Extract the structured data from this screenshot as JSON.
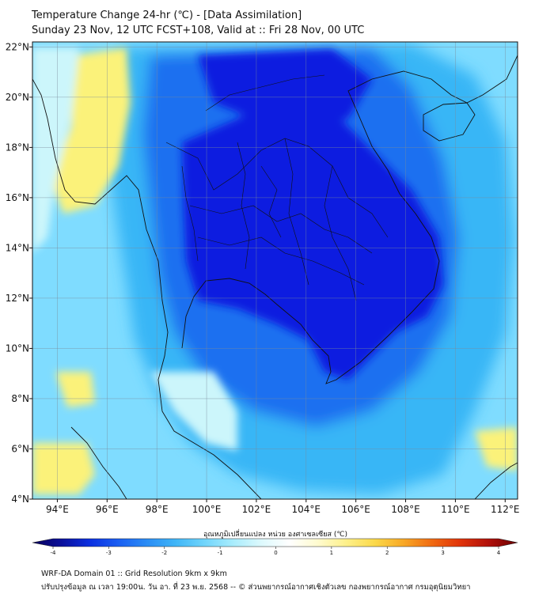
{
  "title_line1": "Temperature Change 24-hr (℃) - [Data Assimilation]",
  "title_line2": "Sunday 23 Nov, 12 UTC FCST+108, Valid at :: Fri 28 Nov, 00 UTC",
  "map": {
    "lon_range": [
      93,
      112.5
    ],
    "lat_range": [
      4,
      22.2
    ],
    "lon_ticks": [
      "94°E",
      "96°E",
      "98°E",
      "100°E",
      "102°E",
      "104°E",
      "106°E",
      "108°E",
      "110°E",
      "112°E"
    ],
    "lon_tick_values": [
      94,
      96,
      98,
      100,
      102,
      104,
      106,
      108,
      110,
      112
    ],
    "lat_ticks": [
      "4°N",
      "6°N",
      "8°N",
      "10°N",
      "12°N",
      "14°N",
      "16°N",
      "18°N",
      "20°N",
      "22°N"
    ],
    "lat_tick_values": [
      4,
      6,
      8,
      10,
      12,
      14,
      16,
      18,
      20,
      22
    ],
    "gridlines": true,
    "field_colors": {
      "background": "#7fdcff",
      "light_blue": "#39b6f6",
      "medium_blue": "#1a6ff0",
      "deep_blue": "#0a1fe0",
      "pale": "#ccf6fb",
      "yellow": "#fbf27a"
    }
  },
  "colorbar": {
    "label": "อุณหภูมิเปลี่ยนแปลง หน่วย องศาเซลเซียส (℃)",
    "ticks": [
      "-4",
      "-3",
      "-2",
      "-1",
      "0",
      "1",
      "2",
      "3",
      "4"
    ],
    "tick_values": [
      -4,
      -3,
      -2,
      -1,
      0,
      1,
      2,
      3,
      4
    ],
    "min": -4,
    "max": 4,
    "colors": [
      "#08005a",
      "#0a0f9a",
      "#0b2fe0",
      "#1a5ef2",
      "#2a8cf5",
      "#3fb5f7",
      "#6fd4fb",
      "#a7ecfd",
      "#dcf9fd",
      "#ffffff",
      "#fffbcf",
      "#fdf08a",
      "#fbd94a",
      "#f8a826",
      "#f06a12",
      "#e0330a",
      "#b0100a",
      "#6a0000"
    ]
  },
  "footer_line1": "WRF-DA Domain 01 :: Grid Resolution 9km x 9km",
  "footer_line2": "ปรับปรุงข้อมูล ณ เวลา 19:00น. วัน อา. ที่ 23 พ.ย. 2568 -- © ส่วนพยากรณ์อากาศเชิงตัวเลข กองพยากรณ์อากาศ กรมอุตุนิยมวิทยา"
}
